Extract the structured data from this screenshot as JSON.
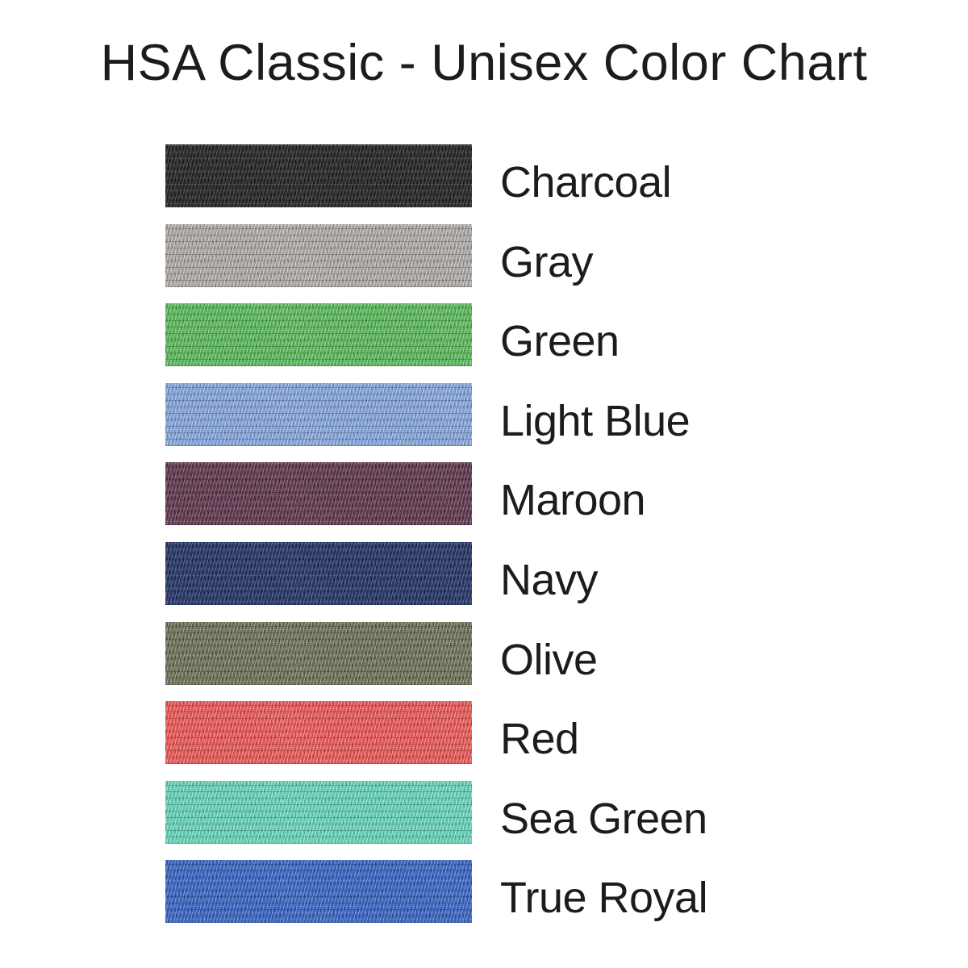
{
  "title": "HSA Classic - Unisex Color Chart",
  "swatches": [
    {
      "name": "Charcoal",
      "base": "#2a2a2c",
      "light": "#515154",
      "dark": "#151517"
    },
    {
      "name": "Gray",
      "base": "#a5a19e",
      "light": "#d2cfcc",
      "dark": "#827e7c"
    },
    {
      "name": "Green",
      "base": "#58b158",
      "light": "#93d493",
      "dark": "#3f8f41"
    },
    {
      "name": "Light Blue",
      "base": "#7f9dd1",
      "light": "#b6c9e8",
      "dark": "#5f7fb8"
    },
    {
      "name": "Maroon",
      "base": "#5e3a4d",
      "light": "#8f6d7e",
      "dark": "#402538"
    },
    {
      "name": "Navy",
      "base": "#2c3763",
      "light": "#50679c",
      "dark": "#1a203e"
    },
    {
      "name": "Olive",
      "base": "#6d6f5a",
      "light": "#9ea089",
      "dark": "#4a4c3a"
    },
    {
      "name": "Red",
      "base": "#e05655",
      "light": "#f29592",
      "dark": "#bc3a3c"
    },
    {
      "name": "Sea Green",
      "base": "#60cab0",
      "light": "#a6e5d5",
      "dark": "#41a98f"
    },
    {
      "name": "True Royal",
      "base": "#3b63bb",
      "light": "#7495d8",
      "dark": "#26489b"
    }
  ],
  "chart_data": {
    "type": "table",
    "title": "HSA Classic - Unisex Color Chart",
    "columns": [
      "color_name",
      "approx_hex"
    ],
    "rows": [
      [
        "Charcoal",
        "#2a2a2c"
      ],
      [
        "Gray",
        "#a5a19e"
      ],
      [
        "Green",
        "#58b158"
      ],
      [
        "Light Blue",
        "#7f9dd1"
      ],
      [
        "Maroon",
        "#5e3a4d"
      ],
      [
        "Navy",
        "#2c3763"
      ],
      [
        "Olive",
        "#6d6f5a"
      ],
      [
        "Red",
        "#e05655"
      ],
      [
        "Sea Green",
        "#60cab0"
      ],
      [
        "True Royal",
        "#3b63bb"
      ]
    ],
    "legend_position": "none",
    "grid": false
  }
}
